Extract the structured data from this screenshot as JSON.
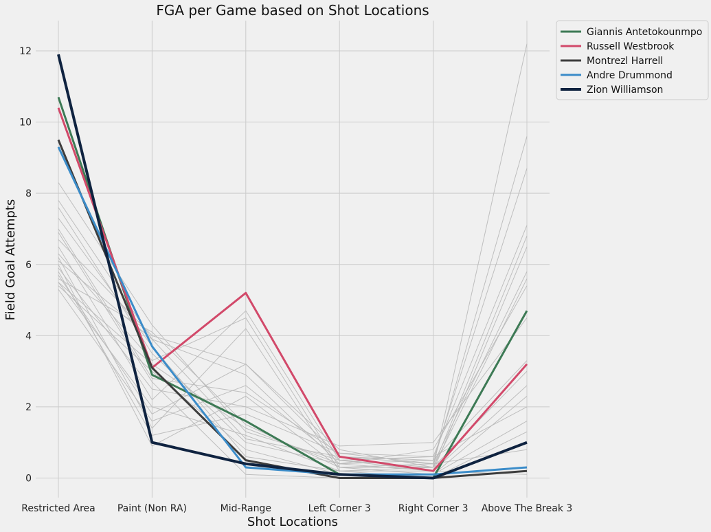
{
  "chart_data": {
    "type": "line",
    "title": "FGA per Game based on Shot Locations",
    "xlabel": "Shot Locations",
    "ylabel": "Field Goal Attempts",
    "categories": [
      "Restricted Area",
      "Paint (Non RA)",
      "Mid-Range",
      "Left Corner 3",
      "Right Corner 3",
      "Above The Break 3"
    ],
    "ylim": [
      -0.55,
      12.85
    ],
    "yticks": [
      0,
      2,
      4,
      6,
      8,
      10,
      12
    ],
    "grid": true,
    "legend_position": "top-right-outside",
    "highlight_series": [
      {
        "name": "Giannis Antetokounmpo",
        "color": "#3d7a55",
        "values": [
          10.7,
          2.9,
          1.6,
          0.1,
          0.0,
          4.7
        ]
      },
      {
        "name": "Russell Westbrook",
        "color": "#d2496a",
        "values": [
          10.4,
          3.1,
          5.2,
          0.6,
          0.2,
          3.2
        ]
      },
      {
        "name": "Montrezl Harrell",
        "color": "#3d3d3d",
        "values": [
          9.5,
          3.1,
          0.5,
          0.0,
          0.0,
          0.2
        ]
      },
      {
        "name": "Andre Drummond",
        "color": "#3b8cc9",
        "values": [
          9.3,
          3.7,
          0.3,
          0.1,
          0.1,
          0.3
        ]
      },
      {
        "name": "Zion Williamson",
        "color": "#0f2340",
        "values": [
          11.9,
          1.0,
          0.4,
          0.1,
          0.0,
          1.0
        ]
      }
    ],
    "background_series_color": "#b8b8b8",
    "background_series": [
      [
        8.3,
        4.3,
        1.3,
        0.5,
        0.3,
        12.2
      ],
      [
        7.8,
        3.9,
        1.1,
        0.6,
        0.4,
        9.6
      ],
      [
        7.6,
        3.5,
        1.0,
        0.4,
        0.5,
        8.7
      ],
      [
        7.0,
        2.8,
        2.4,
        0.7,
        0.6,
        7.1
      ],
      [
        6.7,
        4.0,
        3.2,
        0.8,
        0.3,
        6.8
      ],
      [
        6.5,
        2.2,
        4.7,
        0.5,
        0.2,
        6.5
      ],
      [
        6.3,
        3.3,
        4.5,
        0.3,
        0.4,
        5.8
      ],
      [
        6.2,
        1.4,
        4.2,
        0.2,
        0.3,
        5.6
      ],
      [
        6.1,
        3.9,
        2.9,
        0.4,
        0.8,
        5.4
      ],
      [
        5.9,
        2.5,
        2.0,
        0.9,
        1.0,
        4.5
      ],
      [
        5.7,
        1.8,
        3.2,
        0.6,
        0.5,
        3.3
      ],
      [
        5.6,
        4.1,
        1.5,
        0.3,
        0.3,
        3.0
      ],
      [
        5.5,
        2.0,
        1.2,
        0.2,
        0.2,
        2.6
      ],
      [
        5.4,
        3.0,
        0.8,
        0.1,
        0.1,
        2.3
      ],
      [
        5.3,
        1.6,
        2.6,
        0.5,
        0.6,
        2.0
      ],
      [
        6.9,
        2.7,
        0.1,
        0.0,
        0.1,
        1.6
      ],
      [
        7.3,
        3.7,
        0.6,
        0.2,
        0.0,
        1.3
      ],
      [
        5.8,
        1.2,
        1.8,
        0.7,
        0.4,
        0.8
      ],
      [
        6.0,
        0.9,
        2.3,
        0.3,
        0.1,
        0.3
      ],
      [
        5.5,
        3.2,
        1.4,
        0.4,
        0.2,
        0.1
      ]
    ]
  }
}
